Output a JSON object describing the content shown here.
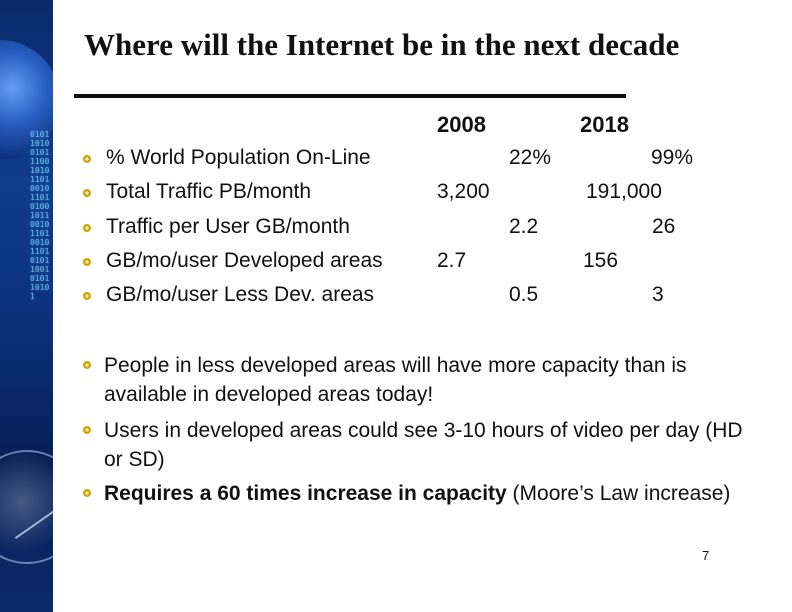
{
  "title": "Where will the Internet be in the next decade",
  "columns": [
    "2008",
    "2018"
  ],
  "rows": [
    {
      "label": "% World Population On-Line",
      "v2008": "22%",
      "v2018": "99%"
    },
    {
      "label": "Total Traffic PB/month",
      "v2008": "3,200",
      "v2018": "191,000"
    },
    {
      "label": "Traffic per User GB/month",
      "v2008": "2.2",
      "v2018": "26"
    },
    {
      "label": "GB/mo/user Developed areas",
      "v2008": "2.7",
      "v2018": "156"
    },
    {
      "label": "GB/mo/user Less Dev. areas",
      "v2008": "0.5",
      "v2018": "3"
    }
  ],
  "notes": [
    {
      "text": "People in  less developed areas will have more capacity than is available in developed areas today!"
    },
    {
      "text": "Users in developed areas could see 3-10 hours of video per day (HD or SD)"
    },
    {
      "bold": "Requires a 60 times increase in capacity",
      "rest": " (Moore’s Law increase)"
    }
  ],
  "page_number": "7",
  "colors": {
    "bullet": "#d2a400",
    "text": "#111111",
    "strip": "#0f3c8c"
  }
}
